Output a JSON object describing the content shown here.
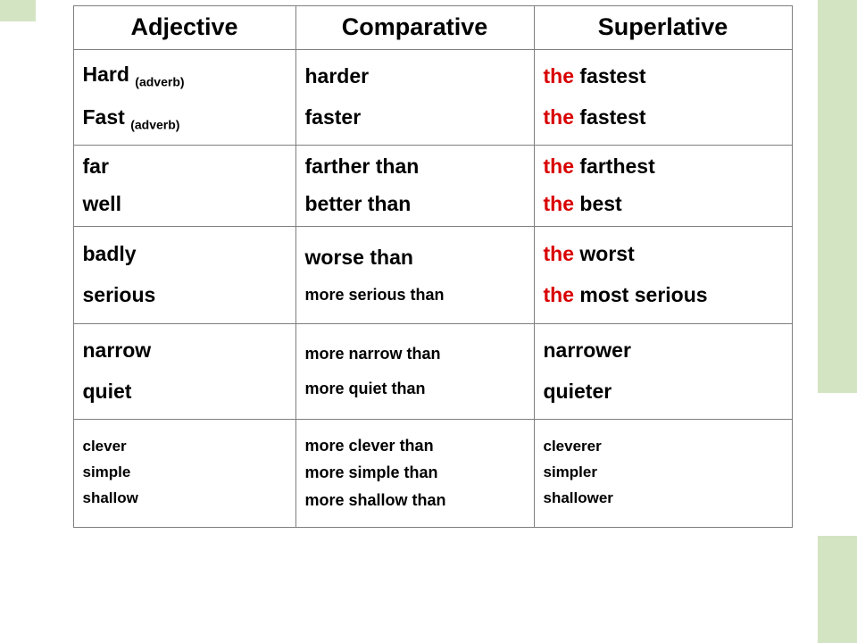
{
  "colors": {
    "background": "#ffffff",
    "accent_bg": "#d3e4c2",
    "border": "#7f7f7f",
    "text": "#000000",
    "highlight": "#d90000"
  },
  "font": {
    "family": "Century Gothic",
    "header_size": 27,
    "big": 23,
    "med": 21,
    "sm": 18,
    "xsm": 17,
    "sub": 14,
    "weight": 700
  },
  "headers": {
    "c1": "Adjective",
    "c2": "Comparative",
    "c3": "Superlative"
  },
  "rows": [
    {
      "adj": [
        {
          "word": "Hard",
          "note": "(adverb)",
          "size": "big"
        },
        {
          "word": "Fast",
          "note": "(adverb)",
          "size": "big"
        }
      ],
      "comp": [
        {
          "text": "harder",
          "size": "big"
        },
        {
          "text": "faster",
          "size": "big"
        }
      ],
      "sup": [
        {
          "prefix": "the ",
          "rest": "fastest",
          "size": "big"
        },
        {
          "prefix": "the ",
          "rest": "fastest",
          "size": "big"
        }
      ],
      "h": "h2",
      "gap": "gap-lg"
    },
    {
      "adj": [
        {
          "word": "far",
          "size": "big"
        },
        {
          "word": "well",
          "size": "big"
        }
      ],
      "comp": [
        {
          "text": "farther than",
          "size": "big"
        },
        {
          "text": "better than",
          "size": "big"
        }
      ],
      "sup": [
        {
          "prefix": "the ",
          "rest": "farthest",
          "size": "big"
        },
        {
          "prefix": "the ",
          "rest": "best",
          "size": "big"
        }
      ],
      "h": "h3",
      "gap": "gap-md"
    },
    {
      "adj": [
        {
          "word": "badly",
          "size": "big"
        },
        {
          "word": "serious",
          "size": "big"
        }
      ],
      "comp": [
        {
          "text": "worse than",
          "size": "big"
        },
        {
          "text": "more serious  than",
          "size": "sm"
        }
      ],
      "sup": [
        {
          "prefix": "the ",
          "rest": "worst",
          "size": "big"
        },
        {
          "prefix": "the ",
          "rest": "most serious",
          "size": "big"
        }
      ],
      "h": "h4",
      "gap": "gap-lg"
    },
    {
      "adj": [
        {
          "word": "narrow",
          "size": "big"
        },
        {
          "word": "quiet",
          "size": "big"
        }
      ],
      "comp": [
        {
          "text": "more narrow than",
          "size": "sm"
        },
        {
          "text": "more quiet than",
          "size": "sm"
        }
      ],
      "sup_plain": [
        {
          "text": "narrower",
          "size": "big"
        },
        {
          "text": "quieter",
          "size": "big"
        }
      ],
      "h": "h5",
      "gap": "gap-lg"
    },
    {
      "adj": [
        {
          "word": "clever",
          "size": "xsm"
        },
        {
          "word": "simple",
          "size": "xsm"
        },
        {
          "word": "shallow",
          "size": "xsm"
        }
      ],
      "comp": [
        {
          "text": "more clever than",
          "size": "sm"
        },
        {
          "text": "more simple than",
          "size": "sm"
        },
        {
          "text": "more shallow than",
          "size": "sm"
        }
      ],
      "sup_plain": [
        {
          "text": "cleverer",
          "size": "xsm"
        },
        {
          "text": "simpler",
          "size": "xsm"
        },
        {
          "text": "shallower",
          "size": "xsm"
        }
      ],
      "h": "h6",
      "gap": "gap-sm"
    }
  ]
}
